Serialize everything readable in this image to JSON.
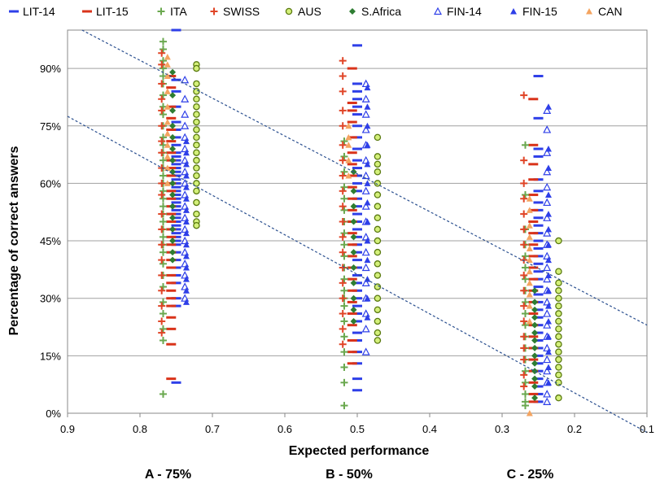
{
  "chart_data": {
    "type": "scatter",
    "title": "",
    "xlabel": "Expected performance",
    "ylabel": "Percentage of correct answers",
    "xlim": [
      0.9,
      0.1
    ],
    "ylim": [
      0,
      100
    ],
    "x_ticks": [
      0.9,
      0.8,
      0.7,
      0.6,
      0.5,
      0.4,
      0.3,
      0.2,
      0.1
    ],
    "x_tick_labels": [
      "0.9",
      "0.8",
      "0.7",
      "0.6",
      "0.5",
      "0.4",
      "0.3",
      "0.2",
      "0.1"
    ],
    "y_ticks": [
      0,
      15,
      30,
      45,
      60,
      75,
      90
    ],
    "y_tick_labels": [
      "0%",
      "15%",
      "30%",
      "45%",
      "60%",
      "75%",
      "90%"
    ],
    "grid": "horizontal",
    "legend_position": "top",
    "groups": [
      {
        "label": "A - 75%",
        "x": 0.75
      },
      {
        "label": "B - 50%",
        "x": 0.5
      },
      {
        "label": "C - 25%",
        "x": 0.25
      }
    ],
    "trend_lines": [
      {
        "x": [
          0.9,
          0.1
        ],
        "y": [
          77.5,
          -5
        ]
      },
      {
        "x": [
          0.88,
          0.1
        ],
        "y": [
          100,
          23
        ]
      }
    ],
    "series": [
      {
        "name": "LIT-14",
        "marker": "dash",
        "color": "#2e3fe8",
        "x_offset": 0.0,
        "values": {
          "A": [
            100,
            87,
            84,
            80,
            76,
            74,
            72,
            70,
            68,
            67,
            66,
            65,
            64,
            63,
            62,
            61,
            60,
            59,
            58,
            57,
            56,
            55,
            54,
            53,
            52,
            51,
            50,
            49,
            48,
            47,
            46,
            45,
            44,
            42,
            40,
            38,
            36,
            34,
            30,
            28,
            8
          ],
          "B": [
            96,
            86,
            84,
            82,
            80,
            78,
            75,
            72,
            69,
            66,
            64,
            62,
            60,
            58,
            56,
            54,
            52,
            50,
            48,
            46,
            44,
            42,
            40,
            38,
            36,
            34,
            32,
            30,
            28,
            26,
            24,
            21,
            19,
            16,
            13,
            9,
            6
          ],
          "C": [
            88,
            77,
            69,
            67,
            61,
            58,
            55,
            53,
            51,
            49,
            47,
            45,
            43,
            41,
            39,
            37,
            35,
            33,
            31,
            29,
            27,
            25,
            23,
            21,
            19,
            17,
            15,
            13,
            11,
            9,
            7,
            5,
            3
          ]
        }
      },
      {
        "name": "LIT-15",
        "marker": "dash",
        "color": "#d9331a",
        "x_offset": 0.007,
        "values": {
          "A": [
            88,
            85,
            80,
            77,
            74,
            71,
            68,
            66,
            64,
            62,
            60,
            58,
            56,
            54,
            52,
            50,
            48,
            46,
            44,
            42,
            40,
            38,
            36,
            34,
            32,
            30,
            28,
            25,
            22,
            18,
            9
          ],
          "B": [
            90,
            81,
            79,
            76,
            72,
            68,
            65,
            62,
            59,
            56,
            53,
            50,
            47,
            44,
            41,
            38,
            35,
            32,
            29,
            26,
            23,
            19,
            16,
            13
          ],
          "C": [
            82,
            70,
            65,
            61,
            57,
            53,
            50,
            47,
            44,
            41,
            38,
            35,
            32,
            29,
            26,
            23,
            20,
            17,
            14,
            11,
            8,
            5,
            3
          ]
        }
      },
      {
        "name": "ITA",
        "marker": "plus",
        "color": "#6aa84f",
        "x_offset": 0.018,
        "values": {
          "A": [
            97,
            95,
            92,
            90,
            88,
            86,
            83,
            80,
            78,
            75,
            72,
            70,
            68,
            66,
            64,
            62,
            60,
            58,
            56,
            54,
            52,
            50,
            48,
            46,
            44,
            42,
            39,
            36,
            33,
            29,
            26,
            22,
            19,
            5
          ],
          "B": [
            71,
            67,
            63,
            59,
            56,
            53,
            50,
            47,
            44,
            41,
            38,
            35,
            32,
            30,
            28,
            24,
            20,
            16,
            12,
            8,
            2
          ],
          "C": [
            70,
            57,
            48,
            44,
            41,
            38,
            35,
            32,
            29,
            26,
            23,
            20,
            17,
            14,
            11,
            8,
            5,
            3,
            2
          ]
        }
      },
      {
        "name": "SWISS",
        "marker": "plus",
        "color": "#e04527",
        "x_offset": 0.02,
        "values": {
          "A": [
            94,
            91,
            86,
            82,
            79,
            75,
            71,
            68,
            64,
            60,
            57,
            52,
            48,
            44,
            40,
            36,
            32,
            28,
            24,
            21
          ],
          "B": [
            92,
            88,
            84,
            79,
            75,
            70,
            66,
            62,
            58,
            54,
            50,
            46,
            42,
            38,
            34,
            30,
            26,
            22,
            18
          ],
          "C": [
            83,
            66,
            60,
            56,
            52,
            48,
            44,
            40,
            36,
            32,
            28,
            24,
            20,
            17,
            14,
            10,
            7
          ]
        }
      },
      {
        "name": "AUS",
        "marker": "circle",
        "color": "#a8d62a",
        "x_offset": -0.028,
        "values": {
          "A": [
            91,
            90,
            86,
            84,
            82,
            80,
            78,
            76,
            74,
            72,
            70,
            68,
            66,
            64,
            62,
            60,
            58,
            55,
            52,
            50,
            49
          ],
          "B": [
            72,
            67,
            65,
            63,
            60,
            57,
            54,
            51,
            48,
            45,
            42,
            39,
            36,
            33,
            30,
            27,
            24,
            21,
            19
          ],
          "C": [
            45,
            37,
            34,
            32,
            30,
            28,
            26,
            24,
            22,
            20,
            18,
            16,
            14,
            12,
            10,
            8,
            4
          ]
        }
      },
      {
        "name": "S.Africa",
        "marker": "diamond",
        "color": "#2e7d32",
        "x_offset": 0.005,
        "values": {
          "A": [
            89,
            83,
            79,
            75,
            72,
            69,
            66,
            63,
            60,
            57,
            54,
            51,
            48,
            45,
            42,
            40
          ],
          "B": [
            63,
            58,
            54,
            50,
            46,
            42,
            38,
            34,
            30,
            27,
            24
          ],
          "C": [
            32,
            29,
            27,
            25,
            23,
            21,
            19,
            17,
            15,
            13,
            11,
            9,
            7,
            4
          ]
        }
      },
      {
        "name": "FIN-14",
        "marker": "triangle-open",
        "color": "#2e3fe8",
        "x_offset": -0.012,
        "values": {
          "A": [
            87,
            82,
            78,
            75,
            72,
            69,
            66,
            63,
            60,
            57,
            54,
            51,
            48,
            45,
            42,
            39,
            36,
            33,
            30
          ],
          "B": [
            86,
            82,
            78,
            74,
            70,
            66,
            62,
            58,
            54,
            50,
            46,
            42,
            38,
            34,
            30,
            26,
            22,
            16
          ],
          "C": [
            79,
            74,
            68,
            63,
            59,
            55,
            51,
            47,
            44,
            41,
            38,
            35,
            32,
            29,
            26,
            23,
            20,
            17,
            14,
            11,
            8,
            5,
            3
          ]
        }
      },
      {
        "name": "FIN-15",
        "marker": "triangle",
        "color": "#2e3fe8",
        "x_offset": -0.014,
        "values": {
          "A": [
            71,
            68,
            65,
            62,
            59,
            56,
            53,
            50,
            47,
            44,
            41,
            38,
            35,
            32,
            29
          ],
          "B": [
            85,
            80,
            75,
            70,
            65,
            60,
            55,
            50,
            45,
            40,
            35,
            30,
            25
          ],
          "C": [
            80,
            69,
            64,
            57,
            52,
            48,
            44,
            40,
            36,
            32,
            28,
            24,
            20,
            16,
            12,
            8
          ]
        }
      },
      {
        "name": "CAN",
        "marker": "triangle",
        "color": "#f4a460",
        "x_offset": 0.012,
        "values": {
          "A": [
            93,
            91,
            88,
            84,
            80,
            76,
            73,
            70,
            67,
            64,
            60
          ],
          "B": [
            75,
            72,
            70,
            66,
            62
          ],
          "C": [
            56,
            53,
            49,
            46,
            43,
            40,
            37,
            34,
            31,
            28,
            24,
            0
          ]
        }
      }
    ]
  }
}
